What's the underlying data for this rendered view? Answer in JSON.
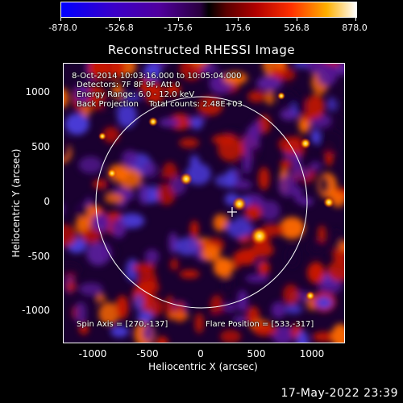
{
  "colorbar": {
    "ticks": [
      "-878.0",
      "-526.8",
      "-175.6",
      "175.6",
      "526.8",
      "878.0"
    ],
    "colors": [
      "#0000ff",
      "#50009e",
      "#000000",
      "#b00000",
      "#ff3000",
      "#ffffff"
    ]
  },
  "title": "Reconstructed RHESSI Image",
  "info": {
    "line1": "8-Oct-2014 10:03:16.000 to 10:05:04.000",
    "line2": "Detectors: 7F 8F 9F, Att 0",
    "line3": "Energy Range: 6.0 - 12.0 keV",
    "line4": "Back Projection    Total counts: 2.48E+03",
    "spin_axis": "Spin Axis = [270,-137]",
    "flare_position": "Flare Position = [533,-317]"
  },
  "axes": {
    "xlabel": "Heliocentric X (arcsec)",
    "ylabel": "Heliocentric Y (arcsec)",
    "xticks": [
      "-1000",
      "-500",
      "0",
      "500",
      "1000"
    ],
    "yticks": [
      "1000",
      "500",
      "0",
      "-500",
      "-1000"
    ]
  },
  "timestamp": "17-May-2022 23:39",
  "palette": {
    "background": "#000000",
    "foreground": "#ffffff",
    "map_dark": "#1a0030",
    "map_purple": "#5a1a9a",
    "map_blue": "#4a3ad8",
    "map_red": "#c81400",
    "map_orange": "#ff6a00",
    "map_yellow": "#ffd040"
  }
}
